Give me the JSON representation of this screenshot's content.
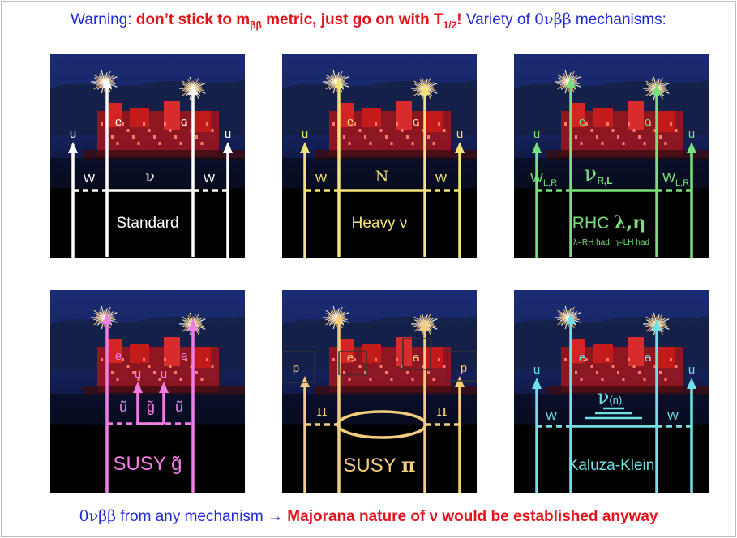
{
  "header": {
    "warning_prefix": "Warning:",
    "red_part1": "don’t stick to m",
    "red_sub1": "ββ",
    "red_part2": " metric, just go on with T",
    "red_sub2": "1/2",
    "red_part3": "!",
    "blue_part": " Variety of ",
    "process": "0νββ",
    "blue_suffix": " mechanisms:"
  },
  "colors": {
    "header_blue": "#1f2bd6",
    "header_red": "#e1141c",
    "standard": "#ffffff",
    "heavy": "#f2e27a",
    "rhc": "#78e07a",
    "susy_g": "#f27de6",
    "susy_pi": "#f2cd7e",
    "kk": "#6fe0e6"
  },
  "panels": [
    {
      "title": "Standard",
      "lepton_left": "e",
      "lepton_right": "e",
      "quark_left": "u",
      "quark_right": "u",
      "boson_left": "W",
      "boson_right": "W",
      "propagator": "ν"
    },
    {
      "title": "Heavy ν",
      "lepton_left": "e",
      "lepton_right": "e",
      "quark_left": "u",
      "quark_right": "u",
      "boson_left": "W",
      "boson_right": "W",
      "propagator": "N"
    },
    {
      "title": "RHC λ,η",
      "subtitle": "λ=RH had, η=LH had",
      "lepton_left": "e",
      "lepton_right": "e",
      "quark_left": "u",
      "quark_right": "u",
      "boson_left": "W",
      "boson_left_sub": "L,R",
      "boson_right": "W",
      "boson_right_sub": "L,R",
      "propagator": "ν",
      "propagator_sub": "R,L"
    },
    {
      "title": "SUSY g̃",
      "lepton_left": "e",
      "lepton_right": "e",
      "quark_left": "u",
      "quark_right": "u",
      "squark_left": "ũ",
      "gluino": "g̃",
      "squark_right": "ũ"
    },
    {
      "title": "SUSY π",
      "lepton_left": "e",
      "lepton_right": "e",
      "hadron_left": "p",
      "hadron_right": "p",
      "pion_left": "π",
      "pion_right": "π"
    },
    {
      "title": "Kaluza-Klein",
      "lepton_left": "e",
      "lepton_right": "e",
      "quark_left": "u",
      "quark_right": "u",
      "boson_left": "W",
      "boson_right": "W",
      "propagator": "ν(n)"
    }
  ],
  "footer": {
    "process": "0νββ",
    "text1": " from any mechanism → ",
    "red_text": "Majorana nature of ν would be established anyway"
  }
}
